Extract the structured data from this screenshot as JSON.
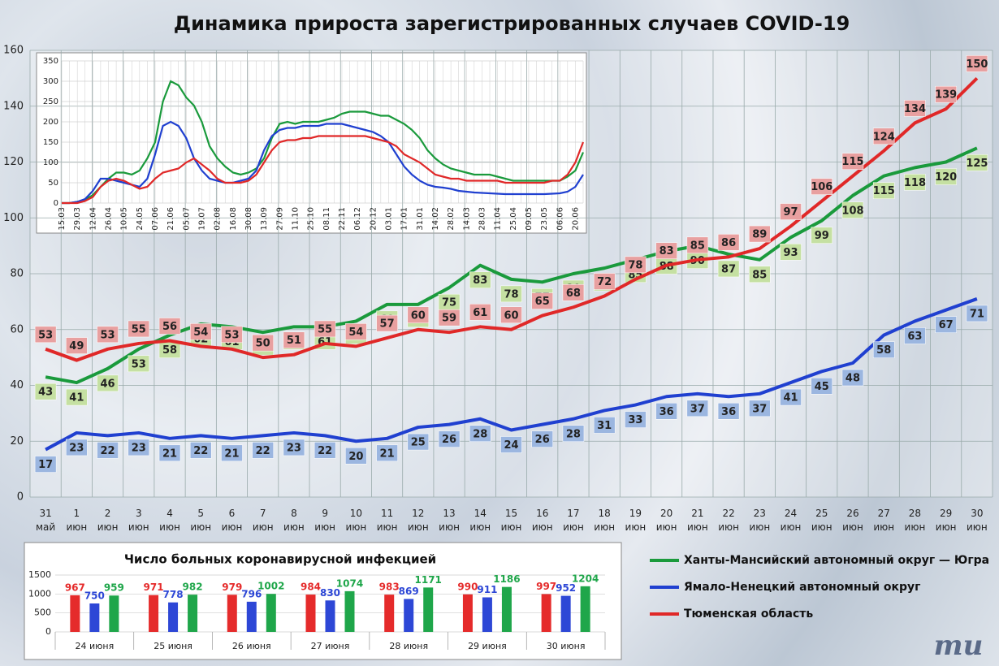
{
  "chart_data": [
    {
      "type": "line",
      "title": "Динамика прироста зарегистрированных случаев COVID-19",
      "categories": [
        "31 май",
        "1 июн",
        "2 июн",
        "3 июн",
        "4 июн",
        "5 июн",
        "6 июн",
        "7 июн",
        "8 июн",
        "9 июн",
        "10 июн",
        "11 июн",
        "12 июн",
        "13 июн",
        "14 июн",
        "15 июн",
        "16 июн",
        "17 июн",
        "18 июн",
        "19 июн",
        "20 июн",
        "21 июн",
        "22 июн",
        "23 июн",
        "24 июн",
        "25 июн",
        "26 июн",
        "27 июн",
        "28 июн",
        "29 июн",
        "30 июн"
      ],
      "ylim": [
        0,
        160
      ],
      "yticks": [
        0,
        20,
        40,
        60,
        80,
        100,
        120,
        140,
        160
      ],
      "grid": true,
      "series": [
        {
          "name": "Ханты-Мансийский автономный округ — Югра",
          "color": "#1a9a3c",
          "values": [
            43,
            41,
            46,
            53,
            58,
            62,
            61,
            59,
            61,
            61,
            63,
            69,
            69,
            75,
            83,
            78,
            77,
            80,
            82,
            85,
            88,
            90,
            87,
            85,
            93,
            99,
            108,
            115,
            118,
            120,
            125
          ]
        },
        {
          "name": "Ямало-Ненецкий автономный округ",
          "color": "#2040d0",
          "values": [
            17,
            23,
            22,
            23,
            21,
            22,
            21,
            22,
            23,
            22,
            20,
            21,
            25,
            26,
            28,
            24,
            26,
            28,
            31,
            33,
            36,
            37,
            36,
            37,
            41,
            45,
            48,
            58,
            63,
            67,
            71
          ]
        },
        {
          "name": "Тюменская область",
          "color": "#e02828",
          "values": [
            53,
            49,
            53,
            55,
            56,
            54,
            53,
            50,
            51,
            55,
            54,
            57,
            60,
            59,
            61,
            60,
            65,
            68,
            72,
            78,
            83,
            85,
            86,
            89,
            97,
            106,
            115,
            124,
            134,
            139,
            150
          ]
        }
      ]
    },
    {
      "type": "line",
      "categories": [
        "15.03",
        null,
        "29.03",
        null,
        "12.04",
        null,
        "26.04",
        null,
        "10.05",
        null,
        "24.05",
        null,
        "07.06",
        null,
        "21.06",
        null,
        "05.07",
        null,
        "19.07",
        null,
        "02.08",
        null,
        "16.08",
        null,
        "30.08",
        null,
        "13.09",
        null,
        "27.09",
        null,
        "11.10",
        null,
        "25.10",
        null,
        "08.11",
        null,
        "22.11",
        null,
        "06.12",
        null,
        "20.12",
        null,
        "03.01",
        null,
        "17.01",
        null,
        "31.01",
        null,
        "14.02",
        null,
        "28.02",
        null,
        "14.03",
        null,
        "28.03",
        null,
        "11.04",
        null,
        "25.04",
        null,
        "09.05",
        null,
        "23.05",
        null,
        "06.06",
        null,
        "20.06",
        null
      ],
      "ylim": [
        0,
        350
      ],
      "yticks": [
        0,
        50,
        100,
        150,
        200,
        250,
        300,
        350
      ],
      "grid": true,
      "series": [
        {
          "color": "#1a9a3c",
          "values": [
            0,
            0,
            3,
            8,
            20,
            40,
            60,
            75,
            75,
            70,
            80,
            110,
            150,
            250,
            300,
            290,
            260,
            240,
            200,
            140,
            110,
            90,
            75,
            70,
            75,
            85,
            110,
            160,
            195,
            200,
            195,
            200,
            200,
            200,
            205,
            210,
            220,
            225,
            225,
            225,
            220,
            215,
            215,
            205,
            195,
            180,
            160,
            130,
            110,
            95,
            85,
            80,
            75,
            70,
            70,
            70,
            65,
            60,
            55,
            55,
            55,
            55,
            55,
            55,
            55,
            65,
            80,
            125
          ]
        },
        {
          "color": "#2040d0",
          "values": [
            0,
            0,
            3,
            10,
            30,
            60,
            60,
            55,
            50,
            45,
            40,
            60,
            120,
            190,
            200,
            190,
            160,
            110,
            80,
            60,
            55,
            50,
            50,
            55,
            60,
            80,
            130,
            165,
            180,
            185,
            185,
            190,
            190,
            190,
            195,
            195,
            195,
            190,
            185,
            180,
            175,
            165,
            150,
            120,
            90,
            70,
            55,
            45,
            40,
            38,
            35,
            30,
            28,
            26,
            25,
            24,
            23,
            22,
            22,
            22,
            22,
            22,
            22,
            23,
            24,
            28,
            40,
            70
          ]
        },
        {
          "color": "#e02828",
          "values": [
            0,
            0,
            0,
            5,
            15,
            40,
            55,
            60,
            55,
            45,
            35,
            40,
            60,
            75,
            80,
            85,
            100,
            110,
            95,
            80,
            60,
            50,
            50,
            50,
            55,
            70,
            100,
            130,
            150,
            155,
            155,
            160,
            160,
            165,
            165,
            165,
            165,
            165,
            165,
            165,
            160,
            155,
            150,
            140,
            120,
            110,
            100,
            85,
            70,
            65,
            60,
            60,
            55,
            55,
            55,
            55,
            55,
            50,
            50,
            50,
            50,
            50,
            50,
            55,
            55,
            70,
            100,
            150
          ]
        }
      ]
    },
    {
      "type": "bar",
      "title": "Число больных коронавирусной инфекцией",
      "categories": [
        "24 июня",
        "25 июня",
        "26 июня",
        "27 июня",
        "28 июня",
        "29 июня",
        "30 июня"
      ],
      "ylim": [
        0,
        1500
      ],
      "yticks": [
        0,
        500,
        1000,
        1500
      ],
      "grid": true,
      "series": [
        {
          "color": "#e52b2b",
          "values": [
            967,
            971,
            979,
            984,
            983,
            990,
            997
          ]
        },
        {
          "color": "#2d47d6",
          "values": [
            750,
            778,
            796,
            830,
            869,
            911,
            952
          ]
        },
        {
          "color": "#1fa64a",
          "values": [
            959,
            982,
            1002,
            1074,
            1171,
            1186,
            1204
          ]
        }
      ]
    }
  ],
  "logo": "mu"
}
